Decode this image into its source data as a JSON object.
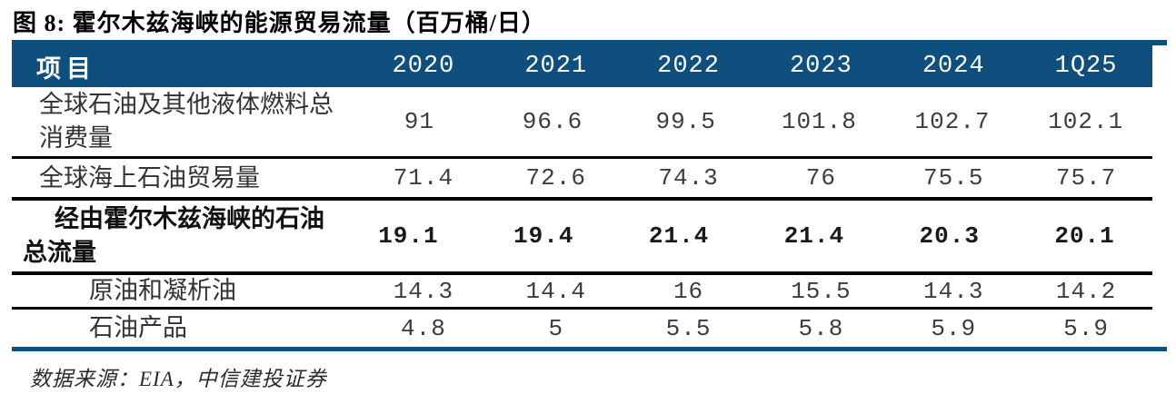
{
  "title": "图 8: 霍尔木兹海峡的能源贸易流量（百万桶/日）",
  "colors": {
    "header_bg": "#0e4f7e",
    "rule_blue": "#0e4f7e",
    "separator_black": "#000000",
    "header_text": "#ffffff",
    "body_text": "#333333"
  },
  "table": {
    "columns": [
      "项目",
      "2020",
      "2021",
      "2022",
      "2023",
      "2024",
      "1Q25"
    ],
    "rows": [
      {
        "label": "全球石油及其他液体燃料总消费量",
        "emphasis": "normal",
        "values": [
          "91",
          "96.6",
          "99.5",
          "101.8",
          "102.7",
          "102.1"
        ]
      },
      {
        "label": "全球海上石油贸易量",
        "emphasis": "normal",
        "values": [
          "71.4",
          "72.6",
          "74.3",
          "76",
          "75.5",
          "75.7"
        ]
      },
      {
        "label": "经由霍尔木兹海峡的石油总流量",
        "emphasis": "bold",
        "values": [
          "19.1",
          "19.4",
          "21.4",
          "21.4",
          "20.3",
          "20.1"
        ]
      },
      {
        "label": "原油和凝析油",
        "emphasis": "sub-item",
        "values": [
          "14.3",
          "14.4",
          "16",
          "15.5",
          "14.3",
          "14.2"
        ]
      },
      {
        "label": "石油产品",
        "emphasis": "sub-item",
        "values": [
          "4.8",
          "5",
          "5.5",
          "5.8",
          "5.9",
          "5.9"
        ]
      }
    ]
  },
  "footer": {
    "source": "数据来源：EIA，中信建投证券"
  }
}
